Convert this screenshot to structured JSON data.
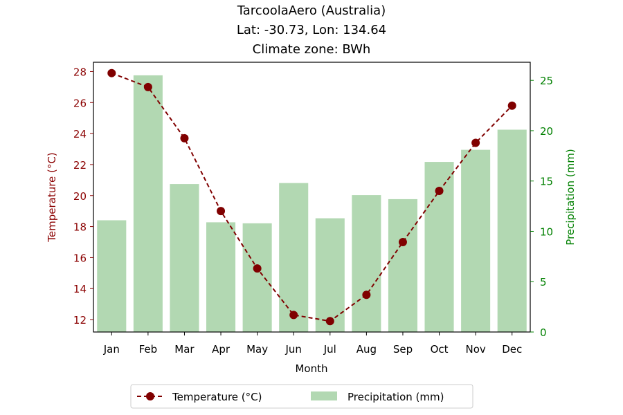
{
  "chart_data": {
    "type": "bar+line",
    "title_lines": [
      "TarcoolaAero (Australia)",
      "Lat: -30.73, Lon: 134.64",
      "Climate zone: BWh"
    ],
    "xlabel": "Month",
    "ylabel_left": "Temperature (°C)",
    "ylabel_right": "Precipitation (mm)",
    "categories": [
      "Jan",
      "Feb",
      "Mar",
      "Apr",
      "May",
      "Jun",
      "Jul",
      "Aug",
      "Sep",
      "Oct",
      "Nov",
      "Dec"
    ],
    "temperature": {
      "name": "Temperature (°C)",
      "values": [
        27.9,
        27.0,
        23.7,
        19.0,
        15.3,
        12.3,
        11.9,
        13.6,
        17.0,
        20.3,
        23.4,
        25.8
      ],
      "color": "#800000"
    },
    "precipitation": {
      "name": "Precipitation (mm)",
      "values": [
        11.1,
        25.5,
        14.7,
        10.9,
        10.8,
        14.8,
        11.3,
        13.6,
        13.2,
        16.9,
        18.1,
        20.1
      ],
      "color": "#b2d8b2"
    },
    "ylim_left": [
      11.2,
      28.6
    ],
    "ylim_right": [
      0,
      26.8
    ],
    "yticks_left": [
      12,
      14,
      16,
      18,
      20,
      22,
      24,
      26,
      28
    ],
    "yticks_right": [
      0,
      5,
      10,
      15,
      20,
      25
    ],
    "left_axis_color": "#8b0000",
    "right_axis_color": "#008000",
    "grid": false,
    "legend_placement": "bottom-center"
  }
}
